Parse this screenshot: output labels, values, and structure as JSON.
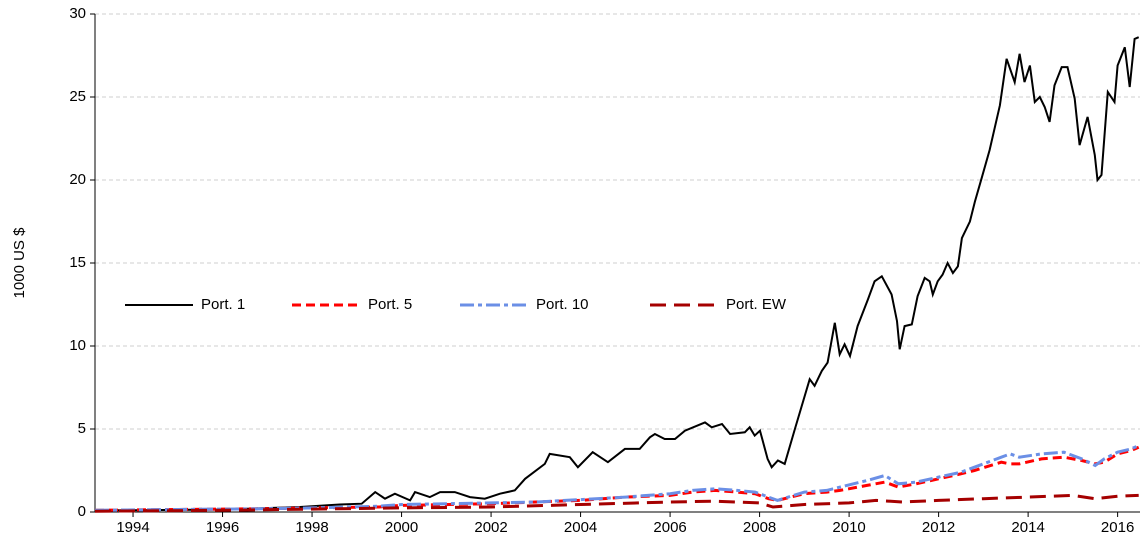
{
  "chart_data": {
    "type": "line",
    "y_label": "1000 US $",
    "xlim": [
      1993.15,
      2016.5
    ],
    "xticks": [
      1994,
      1996,
      1998,
      2000,
      2002,
      2004,
      2006,
      2008,
      2010,
      2012,
      2014,
      2016
    ],
    "ylim": [
      0,
      30
    ],
    "yticks": [
      0,
      5,
      10,
      15,
      20,
      25,
      30
    ],
    "grid": true,
    "legend": "center left",
    "series": [
      {
        "name": "Port. 1",
        "color": "#000000",
        "line_style": "solid",
        "x": [
          1993.15,
          1994,
          1996,
          1997.73,
          1998.62,
          1999.11,
          1999.41,
          1999.63,
          1999.85,
          2000.19,
          2000.3,
          2000.63,
          2000.86,
          2001.19,
          2001.53,
          2001.86,
          2002.2,
          2002.53,
          2002.76,
          2003.2,
          2003.31,
          2003.76,
          2003.94,
          2004.27,
          2004.61,
          2004.99,
          2005.32,
          2005.55,
          2005.66,
          2005.88,
          2006.11,
          2006.33,
          2006.78,
          2006.93,
          2007.16,
          2007.34,
          2007.67,
          2007.78,
          2007.89,
          2008.01,
          2008.18,
          2008.27,
          2008.41,
          2008.56,
          2008.79,
          2009.12,
          2009.23,
          2009.39,
          2009.52,
          2009.68,
          2009.79,
          2009.9,
          2010.02,
          2010.19,
          2010.42,
          2010.57,
          2010.73,
          2010.95,
          2011.07,
          2011.13,
          2011.24,
          2011.4,
          2011.53,
          2011.69,
          2011.8,
          2011.87,
          2011.98,
          2012.09,
          2012.2,
          2012.32,
          2012.43,
          2012.52,
          2012.7,
          2012.81,
          2012.96,
          2013.14,
          2013.37,
          2013.52,
          2013.7,
          2013.81,
          2013.92,
          2014.04,
          2014.15,
          2014.26,
          2014.37,
          2014.48,
          2014.59,
          2014.75,
          2014.88,
          2015.04,
          2015.15,
          2015.33,
          2015.49,
          2015.55,
          2015.64,
          2015.78,
          2015.93,
          2016,
          2016.16,
          2016.27,
          2016.38,
          2016.47
        ],
        "values": [
          0.1,
          0.1,
          0.15,
          0.3,
          0.45,
          0.5,
          1.2,
          0.8,
          1.1,
          0.7,
          1.2,
          0.9,
          1.2,
          1.2,
          0.9,
          0.8,
          1.1,
          1.3,
          2.0,
          2.9,
          3.5,
          3.3,
          2.7,
          3.6,
          3.0,
          3.8,
          3.8,
          4.5,
          4.7,
          4.4,
          4.4,
          4.9,
          5.4,
          5.1,
          5.3,
          4.7,
          4.8,
          5.1,
          4.6,
          4.9,
          3.2,
          2.7,
          3.1,
          2.9,
          5.0,
          8.0,
          7.6,
          8.5,
          9.0,
          11.4,
          9.5,
          10.1,
          9.4,
          11.2,
          12.8,
          13.9,
          14.2,
          13.1,
          11.5,
          9.8,
          11.2,
          11.3,
          13.0,
          14.1,
          13.9,
          13.1,
          13.9,
          14.3,
          15.0,
          14.4,
          14.8,
          16.5,
          17.5,
          18.7,
          20.1,
          21.8,
          24.5,
          27.3,
          25.9,
          27.6,
          25.9,
          26.9,
          24.7,
          25.0,
          24.4,
          23.5,
          25.7,
          26.8,
          26.8,
          24.9,
          22.1,
          23.8,
          21.5,
          20.0,
          20.3,
          25.3,
          24.7,
          26.9,
          28.0,
          25.6,
          28.5,
          28.6
        ]
      },
      {
        "name": "Port. 5",
        "color": "#ff0000",
        "line_style": "dashed",
        "x": [
          1993.15,
          1995,
          1997,
          1998,
          1999.5,
          2000,
          2002,
          2003,
          2004,
          2005,
          2006,
          2006.5,
          2007,
          2007.5,
          2007.9,
          2008.2,
          2008.4,
          2009,
          2009.5,
          2009.8,
          2010.4,
          2010.8,
          2011.1,
          2011.5,
          2012,
          2012.5,
          2012.8,
          2013.4,
          2013.6,
          2013.8,
          2014.3,
          2014.8,
          2015.2,
          2015.5,
          2015.7,
          2016,
          2016.3,
          2016.47
        ],
        "values": [
          0.1,
          0.15,
          0.2,
          0.25,
          0.3,
          0.4,
          0.5,
          0.6,
          0.7,
          0.9,
          1.0,
          1.2,
          1.3,
          1.2,
          1.1,
          0.8,
          0.7,
          1.1,
          1.2,
          1.3,
          1.6,
          1.8,
          1.5,
          1.7,
          2.0,
          2.3,
          2.5,
          3.0,
          2.9,
          2.9,
          3.2,
          3.3,
          3.1,
          2.9,
          3.0,
          3.5,
          3.7,
          3.9
        ]
      },
      {
        "name": "Port. 10",
        "color": "#6b8fe6",
        "line_style": "dash-dot",
        "x": [
          1993.15,
          1995,
          1997,
          1998,
          1999.5,
          2000,
          2002,
          2003,
          2004,
          2005,
          2006,
          2006.5,
          2007,
          2007.5,
          2007.9,
          2008.2,
          2008.4,
          2009,
          2009.5,
          2009.8,
          2010.4,
          2010.8,
          2011.1,
          2011.5,
          2012,
          2012.5,
          2012.8,
          2013.4,
          2013.6,
          2013.8,
          2014.3,
          2014.8,
          2015.2,
          2015.5,
          2015.7,
          2016,
          2016.3,
          2016.47
        ],
        "values": [
          0.1,
          0.15,
          0.2,
          0.25,
          0.35,
          0.45,
          0.55,
          0.6,
          0.75,
          0.9,
          1.1,
          1.3,
          1.4,
          1.3,
          1.2,
          0.9,
          0.7,
          1.2,
          1.3,
          1.5,
          1.9,
          2.2,
          1.7,
          1.8,
          2.1,
          2.4,
          2.7,
          3.3,
          3.5,
          3.3,
          3.5,
          3.6,
          3.2,
          2.8,
          3.2,
          3.6,
          3.8,
          4.0
        ]
      },
      {
        "name": "Port. EW",
        "color": "#a50000",
        "line_style": "long-dashed",
        "x": [
          1993.15,
          1996,
          2000,
          2002,
          2004,
          2006,
          2007,
          2008,
          2008.3,
          2009,
          2010,
          2010.6,
          2011.2,
          2012,
          2013,
          2014,
          2015,
          2015.5,
          2016,
          2016.47
        ],
        "values": [
          0.05,
          0.1,
          0.25,
          0.3,
          0.45,
          0.6,
          0.65,
          0.55,
          0.3,
          0.45,
          0.55,
          0.7,
          0.6,
          0.7,
          0.8,
          0.9,
          1.0,
          0.8,
          0.95,
          1.0
        ]
      }
    ]
  }
}
